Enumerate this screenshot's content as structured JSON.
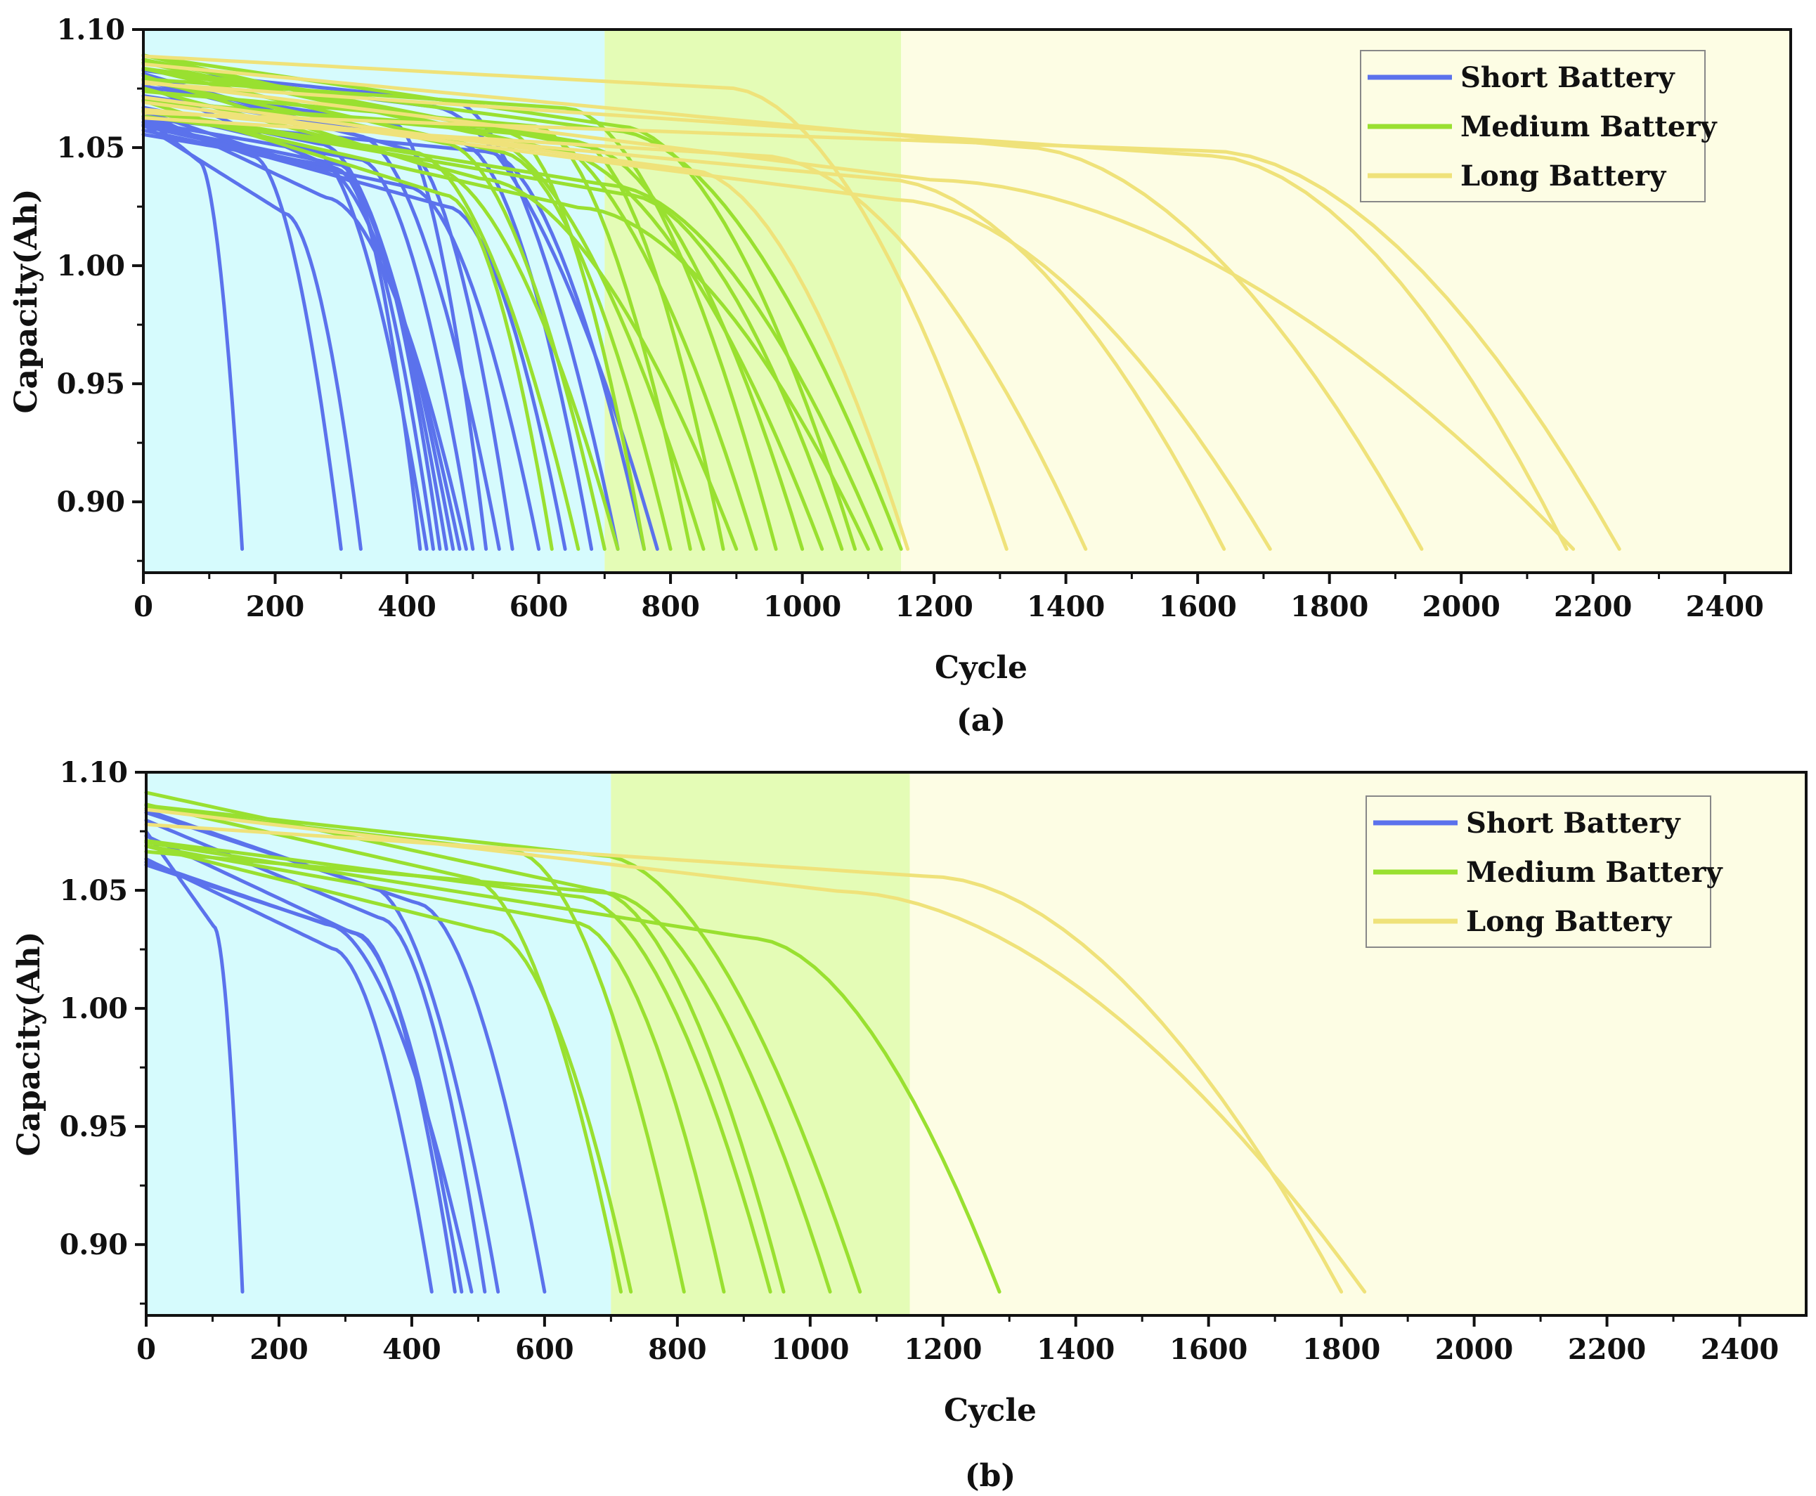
{
  "chart_data": [
    {
      "type": "line",
      "panel_label": "(a)",
      "xlabel": "Cycle",
      "ylabel": "Capacity(Ah)",
      "xlim": [
        0,
        2500
      ],
      "ylim": [
        0.87,
        1.1
      ],
      "xticks": [
        0,
        200,
        400,
        600,
        800,
        1000,
        1200,
        1400,
        1600,
        1800,
        2000,
        2200,
        2400
      ],
      "yticks": [
        0.9,
        0.95,
        1.0,
        1.05,
        1.1
      ],
      "ytick_labels": [
        "0.90",
        "0.95",
        "1.00",
        "1.05",
        "1.10"
      ],
      "regions": [
        {
          "from": 0,
          "to": 700,
          "color": "#d6fbfd"
        },
        {
          "from": 700,
          "to": 1150,
          "color": "#e4fcb6"
        },
        {
          "from": 1150,
          "to": 2500,
          "color": "#fdfde4"
        }
      ],
      "legend": {
        "position": "top-right",
        "entries": [
          {
            "label": "Short Battery",
            "color": "#5b72ec"
          },
          {
            "label": "Medium Battery",
            "color": "#99e030"
          },
          {
            "label": "Long Battery",
            "color": "#efe27a"
          }
        ]
      },
      "series": [
        {
          "name": "Short Battery",
          "color": "#5b72ec",
          "end_cycles": [
            150,
            300,
            330,
            420,
            430,
            440,
            450,
            460,
            470,
            480,
            490,
            500,
            520,
            540,
            560,
            600,
            640,
            680,
            720,
            760,
            780
          ],
          "start_capacity": 1.07
        },
        {
          "name": "Medium Battery",
          "color": "#99e030",
          "end_cycles": [
            620,
            660,
            700,
            720,
            760,
            800,
            830,
            850,
            880,
            900,
            930,
            960,
            1000,
            1030,
            1060,
            1080,
            1100,
            1120,
            1150
          ],
          "start_capacity": 1.075
        },
        {
          "name": "Long Battery",
          "color": "#efe27a",
          "end_cycles": [
            1160,
            1310,
            1430,
            1640,
            1710,
            1940,
            2160,
            2170,
            2240
          ],
          "start_capacity": 1.075
        }
      ]
    },
    {
      "type": "line",
      "panel_label": "(b)",
      "xlabel": "Cycle",
      "ylabel": "Capacity(Ah)",
      "xlim": [
        0,
        2500
      ],
      "ylim": [
        0.87,
        1.1
      ],
      "xticks": [
        0,
        200,
        400,
        600,
        800,
        1000,
        1200,
        1400,
        1600,
        1800,
        2000,
        2200,
        2400
      ],
      "yticks": [
        0.9,
        0.95,
        1.0,
        1.05,
        1.1
      ],
      "ytick_labels": [
        "0.90",
        "0.95",
        "1.00",
        "1.05",
        "1.10"
      ],
      "regions": [
        {
          "from": 0,
          "to": 700,
          "color": "#d6fbfd"
        },
        {
          "from": 700,
          "to": 1150,
          "color": "#e4fcb6"
        },
        {
          "from": 1150,
          "to": 2500,
          "color": "#fdfde4"
        }
      ],
      "legend": {
        "position": "top-right",
        "entries": [
          {
            "label": "Short Battery",
            "color": "#5b72ec"
          },
          {
            "label": "Medium Battery",
            "color": "#99e030"
          },
          {
            "label": "Long Battery",
            "color": "#efe27a"
          }
        ]
      },
      "series": [
        {
          "name": "Short Battery",
          "color": "#5b72ec",
          "end_cycles": [
            145,
            430,
            465,
            475,
            490,
            510,
            530,
            600
          ],
          "start_capacity": 1.07
        },
        {
          "name": "Medium Battery",
          "color": "#99e030",
          "end_cycles": [
            715,
            730,
            810,
            870,
            940,
            960,
            1030,
            1075,
            1285
          ],
          "start_capacity": 1.08
        },
        {
          "name": "Long Battery",
          "color": "#efe27a",
          "end_cycles": [
            1800,
            1835
          ],
          "start_capacity": 1.07
        }
      ]
    }
  ]
}
